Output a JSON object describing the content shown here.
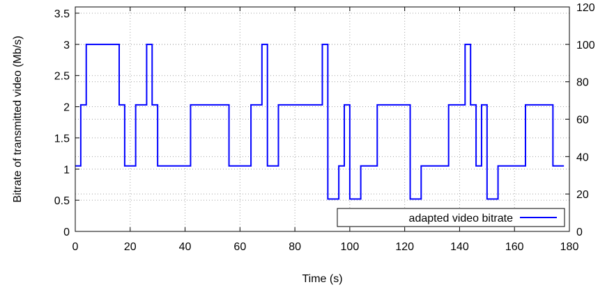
{
  "chart_data": {
    "type": "line",
    "step": "post",
    "xlabel": "Time (s)",
    "ylabel": "Bitrate of transmitted video (Mb/s)",
    "xlim": [
      0,
      180
    ],
    "ylim": [
      0,
      3.6
    ],
    "y2lim": [
      0,
      120
    ],
    "xticks": [
      0,
      20,
      40,
      60,
      80,
      100,
      120,
      140,
      160,
      180
    ],
    "yticks": [
      0,
      0.5,
      1,
      1.5,
      2,
      2.5,
      3,
      3.5
    ],
    "ytick_labels": [
      "0",
      "0.5",
      "1",
      "1.5",
      "2",
      "2.5",
      "3",
      "3.5"
    ],
    "y2ticks": [
      0,
      20,
      40,
      60,
      80,
      100,
      120
    ],
    "grid": true,
    "legend": {
      "placement": "bottom-right",
      "entries": [
        "adapted video bitrate"
      ]
    },
    "series": [
      {
        "name": "adapted video bitrate",
        "color": "#0000ff",
        "x": [
          0,
          2,
          4,
          16,
          18,
          22,
          26,
          28,
          30,
          42,
          56,
          64,
          68,
          70,
          74,
          90,
          92,
          96,
          98,
          100,
          104,
          110,
          122,
          126,
          136,
          142,
          144,
          146,
          148,
          150,
          154,
          164,
          174,
          178
        ],
        "y": [
          1.05,
          2.03,
          3.0,
          2.03,
          1.05,
          2.03,
          3.0,
          2.03,
          1.05,
          2.03,
          1.05,
          2.03,
          3.0,
          1.05,
          2.03,
          3.0,
          0.52,
          1.05,
          2.03,
          0.52,
          1.05,
          2.03,
          0.52,
          1.05,
          2.03,
          3.0,
          2.03,
          1.05,
          2.03,
          0.52,
          1.05,
          2.03,
          1.05,
          1.05
        ]
      }
    ]
  }
}
